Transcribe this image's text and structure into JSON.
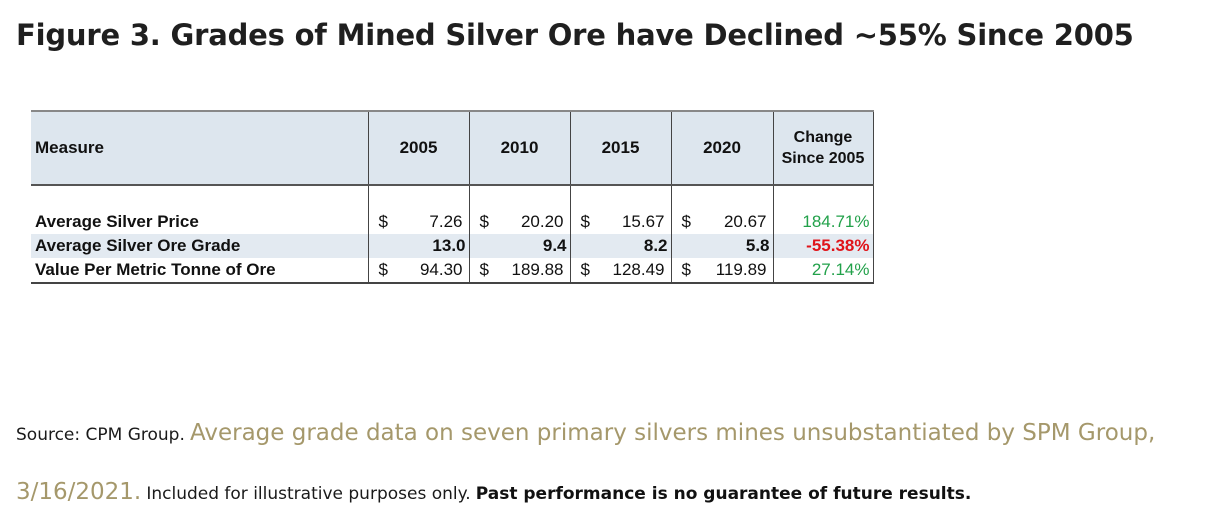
{
  "title": "Figure 3. Grades of Mined Silver Ore have Declined ~55% Since 2005",
  "table": {
    "header": {
      "measure": "Measure",
      "years": [
        "2005",
        "2010",
        "2015",
        "2020"
      ],
      "change_line1": "Change",
      "change_line2": "Since 2005"
    },
    "rows": [
      {
        "label": "Average Silver Price",
        "values": [
          {
            "currency": "$",
            "amount": "7.26"
          },
          {
            "currency": "$",
            "amount": "20.20"
          },
          {
            "currency": "$",
            "amount": "15.67"
          },
          {
            "currency": "$",
            "amount": "20.67"
          }
        ],
        "change": "184.71%"
      },
      {
        "label": "Average Silver Ore Grade",
        "values": [
          "13.0",
          "9.4",
          "8.2",
          "5.8"
        ],
        "change": "-55.38%"
      },
      {
        "label": "Value Per Metric Tonne of Ore",
        "values": [
          {
            "currency": "$",
            "amount": "94.30"
          },
          {
            "currency": "$",
            "amount": "189.88"
          },
          {
            "currency": "$",
            "amount": "128.49"
          },
          {
            "currency": "$",
            "amount": "119.89"
          }
        ],
        "change": "27.14%"
      }
    ]
  },
  "source": {
    "prefix": "Source: CPM Group.",
    "highlight": "Average grade data on seven primary silvers mines unsubstantiated by SPM Group, 3/16/2021.",
    "note": "Included for illustrative purposes only.",
    "disclaimer": "Past performance is no guarantee of future results."
  },
  "colors": {
    "positive_change": "#22a14a",
    "negative_change": "#e0141a",
    "header_shade": "#dde6ee",
    "source_highlight": "#a5986b"
  }
}
